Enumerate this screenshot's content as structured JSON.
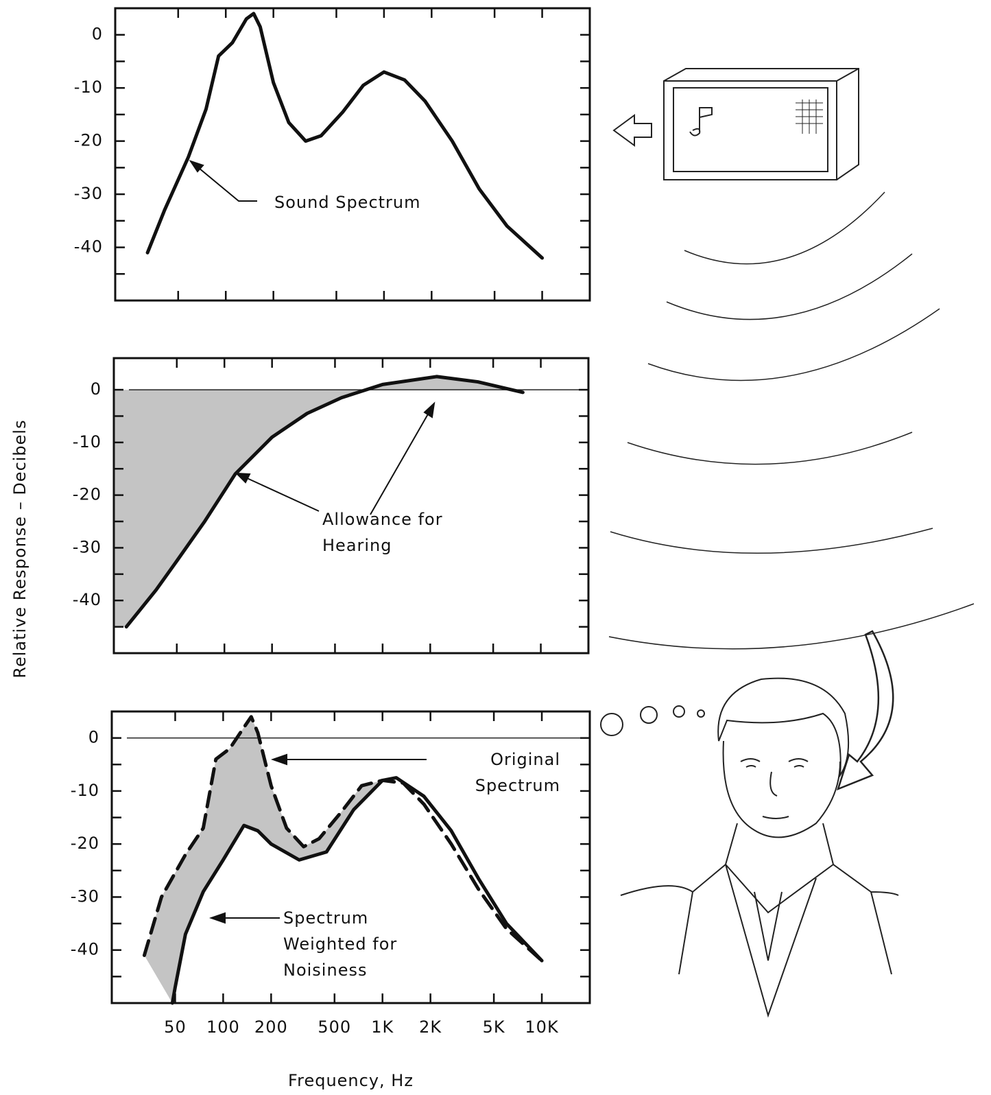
{
  "chart_data": [
    {
      "type": "line",
      "xscale": "log",
      "xlim": [
        20,
        20000
      ],
      "ylim": [
        -50,
        5
      ],
      "yticks": [
        0,
        -10,
        -20,
        -30,
        -40
      ],
      "yminorticks": [
        -5,
        -15,
        -25,
        -35,
        -45
      ],
      "xticks": [
        50,
        100,
        200,
        500,
        1000,
        2000,
        5000,
        10000
      ],
      "show_xtick_labels": false,
      "series": [
        {
          "name": "Sound Spectrum",
          "color": "#111111",
          "x": [
            32,
            41,
            58,
            75,
            90,
            110,
            135,
            150,
            165,
            200,
            250,
            320,
            400,
            550,
            740,
            1000,
            1350,
            1820,
            2700,
            4000,
            6000,
            10000
          ],
          "values": [
            -41,
            -33,
            -23,
            -14,
            -4,
            -1.5,
            3,
            4,
            1.5,
            -9,
            -16.5,
            -20,
            -19,
            -14.5,
            -9.5,
            -7,
            -8.5,
            -12.5,
            -20,
            -29,
            -36,
            -42
          ]
        }
      ]
    },
    {
      "type": "line",
      "xscale": "log",
      "xlim": [
        20,
        20000
      ],
      "ylim": [
        -50,
        6
      ],
      "yticks": [
        0,
        -10,
        -20,
        -30,
        -40
      ],
      "yminorticks": [
        -5,
        -15,
        -25,
        -35,
        -45
      ],
      "xticks": [
        50,
        100,
        200,
        500,
        1000,
        2000,
        5000,
        10000
      ],
      "show_xtick_labels": false,
      "ylabel": "Relative Response – Decibels",
      "reference_line": 0,
      "shade": "to_reference",
      "shade_color": "#c4c4c4",
      "series": [
        {
          "name": "Allowance for Hearing",
          "color": "#111111",
          "x": [
            24,
            37,
            50,
            75,
            117,
            200,
            333,
            550,
            1000,
            2200,
            4000,
            7700
          ],
          "values": [
            -45,
            -38,
            -32.5,
            -25,
            -16,
            -9,
            -4.5,
            -1.5,
            1,
            2.5,
            1.5,
            -0.5
          ]
        }
      ]
    },
    {
      "type": "line",
      "xscale": "log",
      "xlim": [
        20,
        20000
      ],
      "ylim": [
        -50,
        5
      ],
      "yticks": [
        0,
        -10,
        -20,
        -30,
        -40
      ],
      "yminorticks": [
        -5,
        -15,
        -25,
        -35,
        -45
      ],
      "xticks": [
        50,
        100,
        200,
        500,
        {
          "value": 1000,
          "label": "1K"
        },
        {
          "value": 2000,
          "label": "2K"
        },
        {
          "value": 5000,
          "label": "5K"
        },
        {
          "value": 10000,
          "label": "10K"
        }
      ],
      "show_xtick_labels": true,
      "xlabel": "Frequency, Hz",
      "reference_line": 0,
      "shade": "between_series",
      "shade_color": "#c4c4c4",
      "series": [
        {
          "name": "Original Spectrum",
          "color": "#111111",
          "linestyle": "dashed",
          "x": [
            32,
            41,
            58,
            75,
            90,
            110,
            135,
            150,
            165,
            200,
            250,
            320,
            400,
            550,
            740,
            1000,
            1350,
            1820,
            2700,
            4000,
            6000,
            10000
          ],
          "values": [
            -41,
            -30,
            -22,
            -17,
            -4,
            -2,
            2,
            4,
            1,
            -9,
            -17,
            -20.5,
            -19,
            -14,
            -9,
            -8,
            -8.5,
            -12.5,
            -20,
            -28.5,
            -36,
            -42
          ]
        },
        {
          "name": "Spectrum Weighted for Noisiness",
          "color": "#111111",
          "linestyle": "solid",
          "x": [
            48,
            50,
            58,
            75,
            100,
            135,
            165,
            200,
            300,
            445,
            660,
            1000,
            1220,
            1820,
            2700,
            4000,
            6000,
            10000
          ],
          "values": [
            -50,
            -47,
            -37,
            -29,
            -23,
            -16.5,
            -17.5,
            -20,
            -23,
            -21.5,
            -13.5,
            -8,
            -7.5,
            -11,
            -17.5,
            -26.5,
            -35,
            -42
          ]
        }
      ]
    }
  ]
}
